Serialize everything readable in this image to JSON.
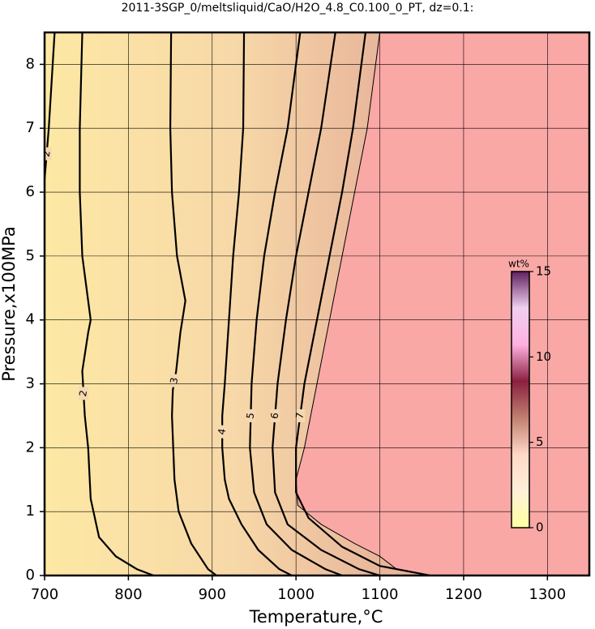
{
  "chart_data": {
    "type": "contour",
    "title": "2011-3SGP_0/meltsliquid/CaO/H2O_4.8_C0.100_0_PT, dz=0.1:",
    "x_label": "Temperature,°C",
    "y_label": "Pressure,x100MPa",
    "xlim": [
      700,
      1350
    ],
    "ylim": [
      0,
      8.5
    ],
    "xticks": [
      700,
      800,
      900,
      1000,
      1100,
      1200,
      1300
    ],
    "yticks": [
      0,
      1,
      2,
      3,
      4,
      5,
      6,
      7,
      8
    ],
    "grid": true,
    "contours": [
      {
        "level": 2,
        "x": [
          745,
          742,
          742,
          745,
          755,
          752,
          745,
          748,
          752,
          755,
          765,
          785,
          810,
          830
        ],
        "y": [
          8.5,
          7,
          6,
          5,
          4,
          3.8,
          3.2,
          2.5,
          2,
          1.2,
          0.6,
          0.3,
          0.1,
          0
        ]
      },
      {
        "level": 2,
        "x": [
          712,
          705,
          700
        ],
        "y": [
          8.5,
          7,
          6.2
        ]
      },
      {
        "level": 3,
        "x": [
          851,
          850,
          852,
          858,
          868,
          862,
          857,
          853,
          852,
          855,
          860,
          875,
          895,
          905
        ],
        "y": [
          8.5,
          7,
          6,
          5,
          4.3,
          3.8,
          3.2,
          2.9,
          2.5,
          1.5,
          1,
          0.5,
          0.1,
          0
        ]
      },
      {
        "level": 4,
        "x": [
          938,
          937,
          932,
          925,
          920,
          915,
          912,
          912,
          915,
          920,
          935,
          955,
          980,
          995
        ],
        "y": [
          8.5,
          7,
          6,
          5,
          4,
          3,
          2.5,
          2,
          1.5,
          1.2,
          0.8,
          0.4,
          0.1,
          0
        ]
      },
      {
        "level": 5,
        "x": [
          1005,
          990,
          975,
          962,
          953,
          947,
          945,
          950,
          965,
          995,
          1035,
          1055
        ],
        "y": [
          8.5,
          7,
          6,
          5,
          4,
          3,
          2,
          1.3,
          0.8,
          0.4,
          0.1,
          0
        ]
      },
      {
        "level": 6,
        "x": [
          1047,
          1030,
          1015,
          1000,
          988,
          978,
          972,
          975,
          990,
          1030,
          1075,
          1100
        ],
        "y": [
          8.5,
          7,
          6,
          5,
          4,
          3,
          2,
          1.3,
          0.8,
          0.4,
          0.1,
          0
        ]
      },
      {
        "level": 7,
        "x": [
          1083,
          1068,
          1055,
          1040,
          1025,
          1010,
          1000,
          1000,
          1015,
          1055,
          1100,
          1140,
          1160
        ],
        "y": [
          8.5,
          7,
          6,
          5,
          4,
          3,
          2,
          1.3,
          0.9,
          0.45,
          0.15,
          0.05,
          0
        ]
      }
    ],
    "boundary": {
      "x": [
        1100,
        1085,
        1070,
        1055,
        1040,
        1025,
        1010,
        1000,
        1002,
        1030,
        1070,
        1100,
        1120,
        1160
      ],
      "y": [
        8.5,
        7,
        6,
        5,
        4,
        3,
        2,
        1.5,
        1.1,
        0.8,
        0.5,
        0.3,
        0.1,
        0
      ]
    },
    "colorbar": {
      "title": "wt%",
      "zlim": [
        0,
        15
      ],
      "zticks": [
        0,
        5,
        10,
        15
      ],
      "colormap": [
        "#ffffa0",
        "#fff0d8",
        "#ffd8c8",
        "#c08070",
        "#8a2040",
        "#ffb0e0",
        "#f0d0f0",
        "#602060"
      ]
    }
  }
}
